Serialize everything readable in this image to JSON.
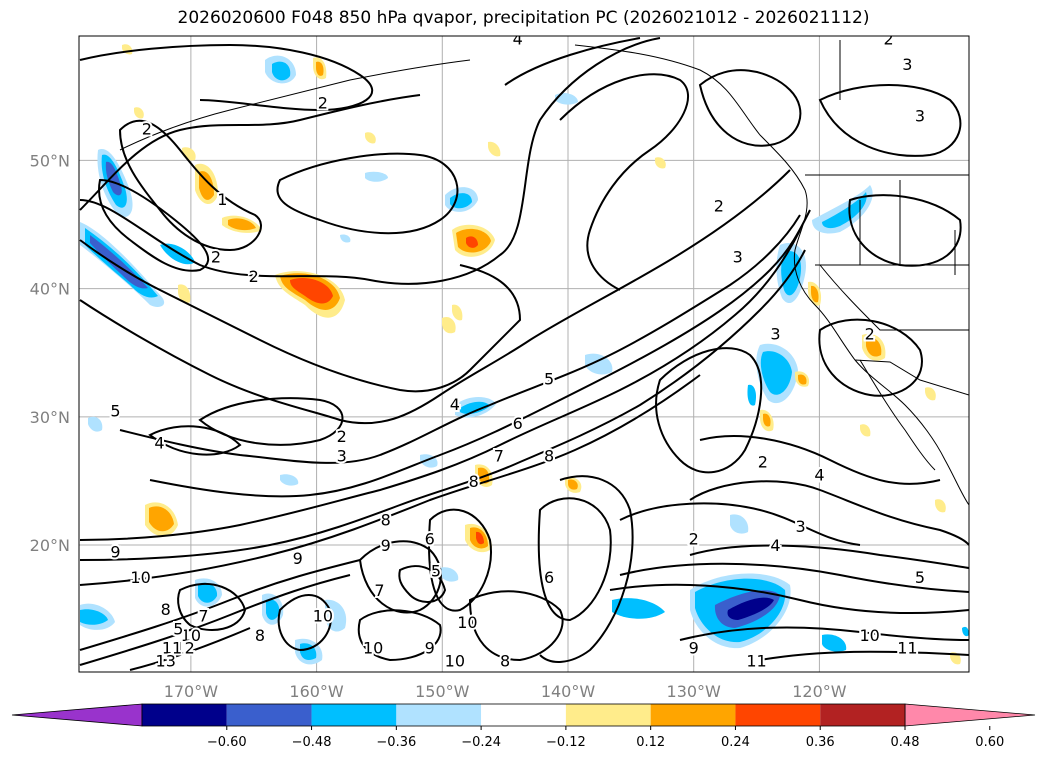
{
  "title": "2026020600 F048 850 hPa qvapor, precipitation PC (2026021012 - 2026021112)",
  "map": {
    "lat_labels": [
      {
        "text": "50°N",
        "lat": 50
      },
      {
        "text": "40°N",
        "lat": 40
      },
      {
        "text": "30°N",
        "lat": 30
      },
      {
        "text": "20°N",
        "lat": 20
      }
    ],
    "lon_labels": [
      {
        "text": "170°W",
        "lon": -170
      },
      {
        "text": "160°W",
        "lon": -160
      },
      {
        "text": "150°W",
        "lon": -150
      },
      {
        "text": "140°W",
        "lon": -140
      },
      {
        "text": "130°W",
        "lon": -130
      },
      {
        "text": "120°W",
        "lon": -120
      }
    ],
    "gridlines": true,
    "contour_labels": [
      {
        "text": "2",
        "lon": -173.5,
        "lat": 52.5
      },
      {
        "text": "1",
        "lon": -167.5,
        "lat": 47
      },
      {
        "text": "2",
        "lon": -168,
        "lat": 42.5
      },
      {
        "text": "2",
        "lon": -165,
        "lat": 41
      },
      {
        "text": "2",
        "lon": -159.5,
        "lat": 54.5
      },
      {
        "text": "4",
        "lon": -144,
        "lat": 59.5
      },
      {
        "text": "2",
        "lon": -114.5,
        "lat": 59.5
      },
      {
        "text": "3",
        "lon": -113,
        "lat": 57.5
      },
      {
        "text": "3",
        "lon": -112,
        "lat": 53.5
      },
      {
        "text": "2",
        "lon": -128,
        "lat": 46.5
      },
      {
        "text": "3",
        "lon": -126.5,
        "lat": 42.5
      },
      {
        "text": "3",
        "lon": -123.5,
        "lat": 36.5
      },
      {
        "text": "2",
        "lon": -116,
        "lat": 36.5
      },
      {
        "text": "5",
        "lon": -141.5,
        "lat": 33
      },
      {
        "text": "6",
        "lon": -144,
        "lat": 29.5
      },
      {
        "text": "7",
        "lon": -145.5,
        "lat": 27
      },
      {
        "text": "8",
        "lon": -141.5,
        "lat": 27
      },
      {
        "text": "4",
        "lon": -149,
        "lat": 31
      },
      {
        "text": "2",
        "lon": -158,
        "lat": 28.5
      },
      {
        "text": "3",
        "lon": -158,
        "lat": 27
      },
      {
        "text": "4",
        "lon": -172.5,
        "lat": 28
      },
      {
        "text": "5",
        "lon": -176,
        "lat": 30.5
      },
      {
        "text": "8",
        "lon": -147.5,
        "lat": 25
      },
      {
        "text": "8",
        "lon": -154.5,
        "lat": 22
      },
      {
        "text": "9",
        "lon": -154.5,
        "lat": 20
      },
      {
        "text": "9",
        "lon": -161.5,
        "lat": 19
      },
      {
        "text": "6",
        "lon": -151,
        "lat": 20.5
      },
      {
        "text": "5",
        "lon": -150.5,
        "lat": 18
      },
      {
        "text": "7",
        "lon": -155,
        "lat": 16.5
      },
      {
        "text": "10",
        "lon": -159.5,
        "lat": 14.5
      },
      {
        "text": "10",
        "lon": -148,
        "lat": 14
      },
      {
        "text": "10",
        "lon": -155.5,
        "lat": 12
      },
      {
        "text": "9",
        "lon": -151,
        "lat": 12
      },
      {
        "text": "10",
        "lon": -149,
        "lat": 11
      },
      {
        "text": "8",
        "lon": -145,
        "lat": 11
      },
      {
        "text": "6",
        "lon": -141.5,
        "lat": 17.5
      },
      {
        "text": "9",
        "lon": -176,
        "lat": 19.5
      },
      {
        "text": "10",
        "lon": -174,
        "lat": 17.5
      },
      {
        "text": "8",
        "lon": -172,
        "lat": 15
      },
      {
        "text": "7",
        "lon": -169,
        "lat": 14.5
      },
      {
        "text": "10",
        "lon": -170,
        "lat": 13
      },
      {
        "text": "12",
        "lon": -170.5,
        "lat": 12
      },
      {
        "text": "11",
        "lon": -171.5,
        "lat": 12
      },
      {
        "text": "13",
        "lon": -172,
        "lat": 11
      },
      {
        "text": "8",
        "lon": -164.5,
        "lat": 13
      },
      {
        "text": "5",
        "lon": -171,
        "lat": 13.5
      },
      {
        "text": "4",
        "lon": -123.5,
        "lat": 20
      },
      {
        "text": "2",
        "lon": -130,
        "lat": 20.5
      },
      {
        "text": "3",
        "lon": -121.5,
        "lat": 21.5
      },
      {
        "text": "2",
        "lon": -124.5,
        "lat": 26.5
      },
      {
        "text": "4",
        "lon": -120,
        "lat": 25.5
      },
      {
        "text": "9",
        "lon": -130,
        "lat": 12
      },
      {
        "text": "11",
        "lon": -125,
        "lat": 11
      },
      {
        "text": "10",
        "lon": -116,
        "lat": 13
      },
      {
        "text": "11",
        "lon": -113,
        "lat": 12
      },
      {
        "text": "5",
        "lon": -112,
        "lat": 17.5
      }
    ]
  },
  "colorbar": {
    "levels": [
      -0.6,
      -0.48,
      -0.36,
      -0.24,
      -0.12,
      0.12,
      0.24,
      0.36,
      0.48,
      0.6
    ],
    "tick_labels": [
      "−0.60",
      "−0.48",
      "−0.36",
      "−0.24",
      "−0.12",
      "0.12",
      "0.24",
      "0.36",
      "0.48",
      "0.60"
    ],
    "colors": [
      "#9933cc",
      "#00008b",
      "#3a5fcd",
      "#00bfff",
      "#b0e2ff",
      "#ffffff",
      "#ffec8b",
      "#ffa500",
      "#ff4500",
      "#b22222",
      "#ff88aa"
    ]
  }
}
